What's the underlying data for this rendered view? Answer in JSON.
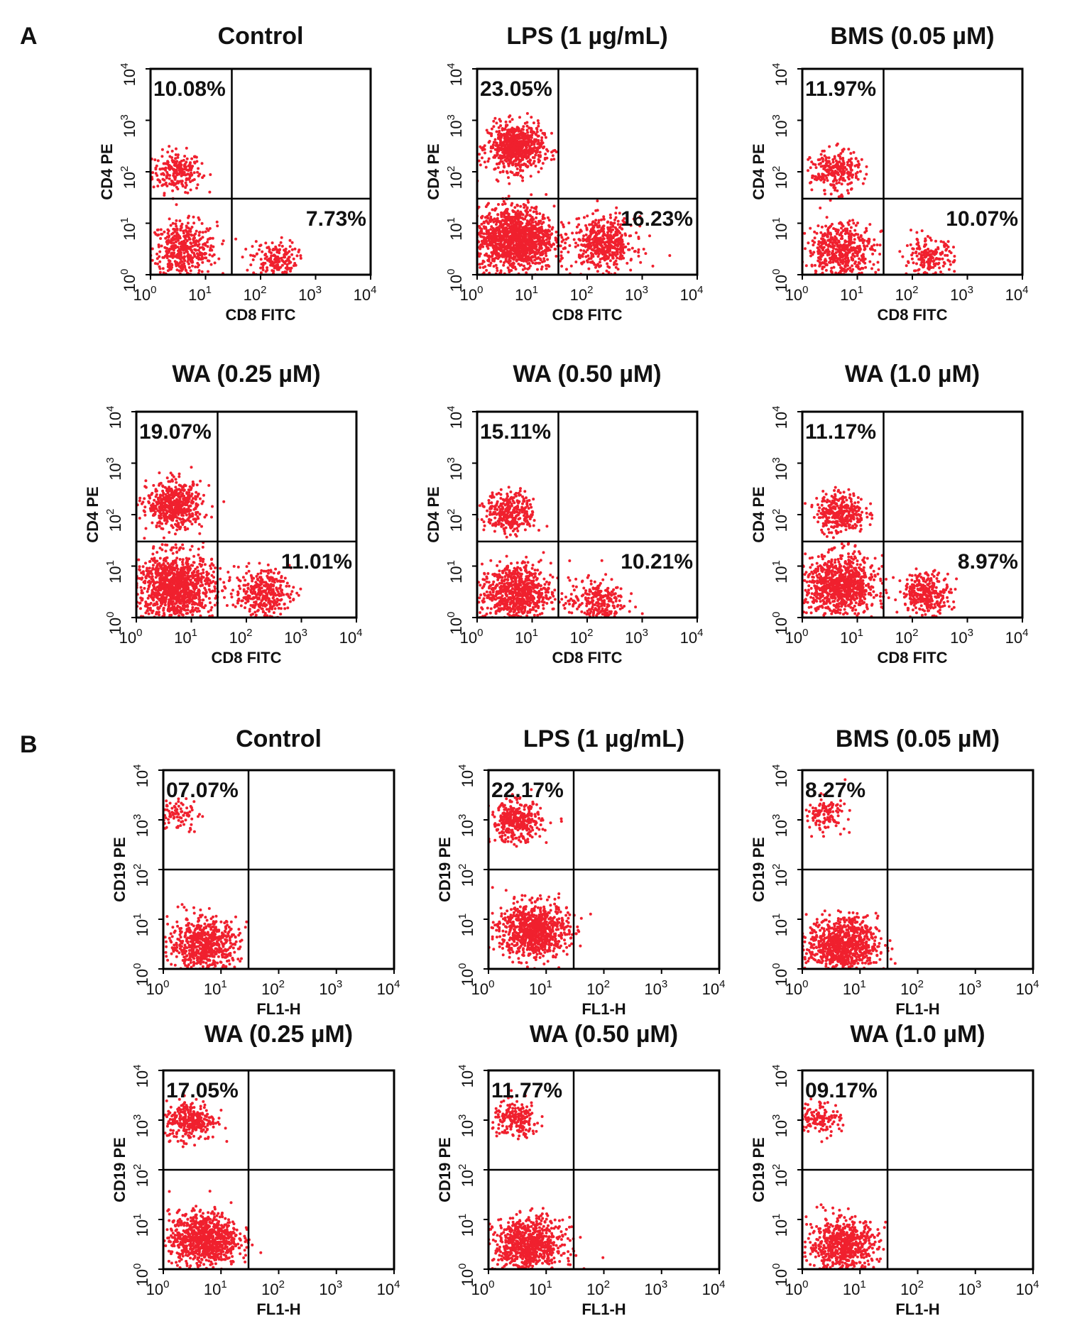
{
  "figure": {
    "panel_a_letter": "A",
    "panel_b_letter": "B"
  },
  "colors": {
    "dots": "#f0202e",
    "frame": "#000000",
    "text": "#111111"
  },
  "chart_data": [
    {
      "type": "scatter",
      "panel": "A",
      "title": "Control",
      "xlabel": "CD8 FITC",
      "ylabel": "CD4 PE",
      "xscale": "log",
      "yscale": "log",
      "xlim": [
        1,
        10000
      ],
      "ylim": [
        1,
        10000
      ],
      "ticks": [
        "10^0",
        "10^1",
        "10^2",
        "10^3",
        "10^4"
      ],
      "gate": {
        "x": 30,
        "y": 30
      },
      "quadrant_labels": [
        {
          "quadrant": "upper-left",
          "value": "10.08%"
        },
        {
          "quadrant": "lower-right",
          "value": "7.73%"
        }
      ],
      "populations": [
        {
          "x": 3,
          "y": 100,
          "spread": 0.22,
          "n": 230
        },
        {
          "x": 4,
          "y": 3,
          "spread": 0.3,
          "n": 450
        },
        {
          "x": 180,
          "y": 2,
          "spread": 0.2,
          "n": 170
        }
      ]
    },
    {
      "type": "scatter",
      "panel": "A",
      "title": "LPS (1 µg/mL)",
      "xlabel": "CD8 FITC",
      "ylabel": "CD4 PE",
      "xscale": "log",
      "yscale": "log",
      "xlim": [
        1,
        10000
      ],
      "ylim": [
        1,
        10000
      ],
      "ticks": [
        "10^0",
        "10^1",
        "10^2",
        "10^3",
        "10^4"
      ],
      "gate": {
        "x": 30,
        "y": 30
      },
      "quadrant_labels": [
        {
          "quadrant": "upper-left",
          "value": "23.05%"
        },
        {
          "quadrant": "lower-right",
          "value": "16.23%"
        }
      ],
      "populations": [
        {
          "x": 5,
          "y": 300,
          "spread": 0.25,
          "n": 700
        },
        {
          "x": 5,
          "y": 5,
          "spread": 0.35,
          "n": 1300
        },
        {
          "x": 200,
          "y": 4,
          "spread": 0.28,
          "n": 500
        }
      ]
    },
    {
      "type": "scatter",
      "panel": "A",
      "title": "BMS (0.05 µM)",
      "xlabel": "CD8 FITC",
      "ylabel": "CD4 PE",
      "xscale": "log",
      "yscale": "log",
      "xlim": [
        1,
        10000
      ],
      "ylim": [
        1,
        10000
      ],
      "ticks": [
        "10^0",
        "10^1",
        "10^2",
        "10^3",
        "10^4"
      ],
      "gate": {
        "x": 30,
        "y": 30
      },
      "quadrant_labels": [
        {
          "quadrant": "upper-left",
          "value": "11.97%"
        },
        {
          "quadrant": "lower-right",
          "value": "10.07%"
        }
      ],
      "populations": [
        {
          "x": 4,
          "y": 100,
          "spread": 0.22,
          "n": 260
        },
        {
          "x": 5,
          "y": 3,
          "spread": 0.3,
          "n": 500
        },
        {
          "x": 200,
          "y": 2,
          "spread": 0.22,
          "n": 200
        }
      ]
    },
    {
      "type": "scatter",
      "panel": "A",
      "title": "WA (0.25 µM)",
      "xlabel": "CD8 FITC",
      "ylabel": "CD4 PE",
      "xscale": "log",
      "yscale": "log",
      "xlim": [
        1,
        10000
      ],
      "ylim": [
        1,
        10000
      ],
      "ticks": [
        "10^0",
        "10^1",
        "10^2",
        "10^3",
        "10^4"
      ],
      "gate": {
        "x": 30,
        "y": 30
      },
      "quadrant_labels": [
        {
          "quadrant": "upper-left",
          "value": "19.07%"
        },
        {
          "quadrant": "lower-right",
          "value": "11.01%"
        }
      ],
      "populations": [
        {
          "x": 5,
          "y": 150,
          "spread": 0.25,
          "n": 550
        },
        {
          "x": 5,
          "y": 4,
          "spread": 0.35,
          "n": 1100
        },
        {
          "x": 200,
          "y": 3,
          "spread": 0.25,
          "n": 350
        }
      ]
    },
    {
      "type": "scatter",
      "panel": "A",
      "title": "WA (0.50 µM)",
      "xlabel": "CD8 FITC",
      "ylabel": "CD4 PE",
      "xscale": "log",
      "yscale": "log",
      "xlim": [
        1,
        10000
      ],
      "ylim": [
        1,
        10000
      ],
      "ticks": [
        "10^0",
        "10^1",
        "10^2",
        "10^3",
        "10^4"
      ],
      "gate": {
        "x": 30,
        "y": 30
      },
      "quadrant_labels": [
        {
          "quadrant": "upper-left",
          "value": "15.11%"
        },
        {
          "quadrant": "lower-right",
          "value": "10.21%"
        }
      ],
      "populations": [
        {
          "x": 4,
          "y": 110,
          "spread": 0.22,
          "n": 330
        },
        {
          "x": 5,
          "y": 3,
          "spread": 0.32,
          "n": 700
        },
        {
          "x": 150,
          "y": 2,
          "spread": 0.25,
          "n": 250
        }
      ]
    },
    {
      "type": "scatter",
      "panel": "A",
      "title": "WA (1.0 µM)",
      "xlabel": "CD8 FITC",
      "ylabel": "CD4 PE",
      "xscale": "log",
      "yscale": "log",
      "xlim": [
        1,
        10000
      ],
      "ylim": [
        1,
        10000
      ],
      "ticks": [
        "10^0",
        "10^1",
        "10^2",
        "10^3",
        "10^4"
      ],
      "gate": {
        "x": 30,
        "y": 30
      },
      "quadrant_labels": [
        {
          "quadrant": "upper-left",
          "value": "11.17%"
        },
        {
          "quadrant": "lower-right",
          "value": "8.97%"
        }
      ],
      "populations": [
        {
          "x": 5,
          "y": 110,
          "spread": 0.22,
          "n": 330
        },
        {
          "x": 5,
          "y": 4,
          "spread": 0.32,
          "n": 900
        },
        {
          "x": 180,
          "y": 3,
          "spread": 0.22,
          "n": 300
        }
      ]
    },
    {
      "type": "scatter",
      "panel": "B",
      "title": "Control",
      "xlabel": "FL1-H",
      "ylabel": "CD19 PE",
      "xscale": "log",
      "yscale": "log",
      "xlim": [
        1,
        10000
      ],
      "ylim": [
        1,
        10000
      ],
      "ticks": [
        "10^0",
        "10^1",
        "10^2",
        "10^3",
        "10^4"
      ],
      "gate": {
        "x": 30,
        "y": 100
      },
      "quadrant_labels": [
        {
          "quadrant": "upper-left",
          "value": "07.07%"
        }
      ],
      "populations": [
        {
          "x": 1.8,
          "y": 1300,
          "spread": 0.18,
          "n": 90
        },
        {
          "x": 5,
          "y": 3,
          "spread": 0.3,
          "n": 650
        }
      ]
    },
    {
      "type": "scatter",
      "panel": "B",
      "title": "LPS (1 µg/mL)",
      "xlabel": "FL1-H",
      "ylabel": "CD19 PE",
      "xscale": "log",
      "yscale": "log",
      "xlim": [
        1,
        10000
      ],
      "ylim": [
        1,
        10000
      ],
      "ticks": [
        "10^0",
        "10^1",
        "10^2",
        "10^3",
        "10^4"
      ],
      "gate": {
        "x": 30,
        "y": 100
      },
      "quadrant_labels": [
        {
          "quadrant": "upper-left",
          "value": "22.17%"
        }
      ],
      "populations": [
        {
          "x": 3,
          "y": 900,
          "spread": 0.22,
          "n": 380
        },
        {
          "x": 6,
          "y": 6,
          "spread": 0.3,
          "n": 850
        }
      ]
    },
    {
      "type": "scatter",
      "panel": "B",
      "title": "BMS (0.05 µM)",
      "xlabel": "FL1-H",
      "ylabel": "CD19 PE",
      "xscale": "log",
      "yscale": "log",
      "xlim": [
        1,
        10000
      ],
      "ylim": [
        1,
        10000
      ],
      "ticks": [
        "10^0",
        "10^1",
        "10^2",
        "10^3",
        "10^4"
      ],
      "gate": {
        "x": 30,
        "y": 100
      },
      "quadrant_labels": [
        {
          "quadrant": "upper-left",
          "value": "8.27%"
        }
      ],
      "populations": [
        {
          "x": 2.5,
          "y": 1300,
          "spread": 0.18,
          "n": 120
        },
        {
          "x": 5,
          "y": 3,
          "spread": 0.3,
          "n": 850
        }
      ]
    },
    {
      "type": "scatter",
      "panel": "B",
      "title": "WA (0.25 µM)",
      "xlabel": "FL1-H",
      "ylabel": "CD19 PE",
      "xscale": "log",
      "yscale": "log",
      "xlim": [
        1,
        10000
      ],
      "ylim": [
        1,
        10000
      ],
      "ticks": [
        "10^0",
        "10^1",
        "10^2",
        "10^3",
        "10^4"
      ],
      "gate": {
        "x": 30,
        "y": 100
      },
      "quadrant_labels": [
        {
          "quadrant": "upper-left",
          "value": "17.05%"
        }
      ],
      "populations": [
        {
          "x": 3,
          "y": 1000,
          "spread": 0.22,
          "n": 300
        },
        {
          "x": 5,
          "y": 4,
          "spread": 0.3,
          "n": 900
        }
      ]
    },
    {
      "type": "scatter",
      "panel": "B",
      "title": "WA (0.50 µM)",
      "xlabel": "FL1-H",
      "ylabel": "CD19 PE",
      "xscale": "log",
      "yscale": "log",
      "xlim": [
        1,
        10000
      ],
      "ylim": [
        1,
        10000
      ],
      "ticks": [
        "10^0",
        "10^1",
        "10^2",
        "10^3",
        "10^4"
      ],
      "gate": {
        "x": 30,
        "y": 100
      },
      "quadrant_labels": [
        {
          "quadrant": "upper-left",
          "value": "11.77%"
        }
      ],
      "populations": [
        {
          "x": 3,
          "y": 1000,
          "spread": 0.2,
          "n": 200
        },
        {
          "x": 5,
          "y": 3,
          "spread": 0.3,
          "n": 800
        }
      ]
    },
    {
      "type": "scatter",
      "panel": "B",
      "title": "WA (1.0 µM)",
      "xlabel": "FL1-H",
      "ylabel": "CD19 PE",
      "xscale": "log",
      "yscale": "log",
      "xlim": [
        1,
        10000
      ],
      "ylim": [
        1,
        10000
      ],
      "ticks": [
        "10^0",
        "10^1",
        "10^2",
        "10^3",
        "10^4"
      ],
      "gate": {
        "x": 30,
        "y": 100
      },
      "quadrant_labels": [
        {
          "quadrant": "upper-left",
          "value": "09.17%"
        }
      ],
      "populations": [
        {
          "x": 2,
          "y": 1100,
          "spread": 0.18,
          "n": 130
        },
        {
          "x": 5,
          "y": 3,
          "spread": 0.3,
          "n": 650
        }
      ]
    }
  ]
}
